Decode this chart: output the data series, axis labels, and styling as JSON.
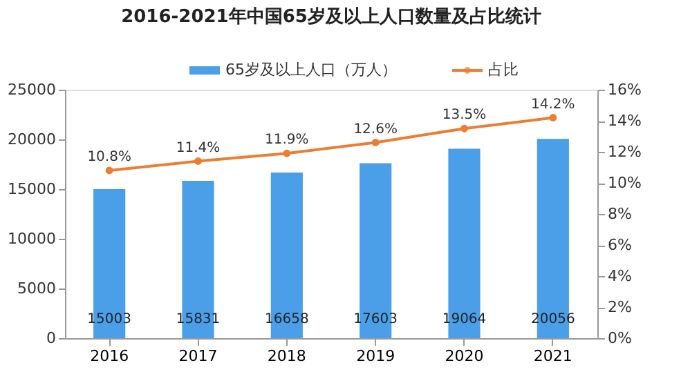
{
  "chart_data": {
    "type": "bar",
    "title": "2016-2021年中国65岁及以上人口数量及占比统计",
    "categories": [
      "2016",
      "2017",
      "2018",
      "2019",
      "2020",
      "2021"
    ],
    "series": [
      {
        "name": "65岁及以上人口（万人）",
        "type": "bar",
        "color": "#4a9fe8",
        "values": [
          15003,
          15831,
          16658,
          17603,
          19064,
          20056
        ],
        "value_labels": [
          "15003",
          "15831",
          "16658",
          "17603",
          "19064",
          "20056"
        ]
      },
      {
        "name": "占比",
        "type": "line",
        "axis": "y2",
        "color": "#ed7d31",
        "marker": "circle",
        "values": [
          10.8,
          11.4,
          11.9,
          12.6,
          13.5,
          14.2
        ],
        "value_labels": [
          "10.8%",
          "11.4%",
          "11.9%",
          "12.6%",
          "13.5%",
          "14.2%"
        ]
      }
    ],
    "ylim": [
      0,
      25000
    ],
    "yticks": [
      0,
      5000,
      10000,
      15000,
      20000,
      25000
    ],
    "y2lim": [
      0,
      16
    ],
    "y2ticks": [
      {
        "value": 0,
        "label": "0%"
      },
      {
        "value": 2,
        "label": "2%"
      },
      {
        "value": 4,
        "label": "4%"
      },
      {
        "value": 6,
        "label": "6%"
      },
      {
        "value": 8,
        "label": "8%"
      },
      {
        "value": 10,
        "label": "10%"
      },
      {
        "value": 12,
        "label": "12%"
      },
      {
        "value": 14,
        "label": "14%"
      },
      {
        "value": 16,
        "label": "16%"
      }
    ],
    "grid": false,
    "legend": "top"
  }
}
